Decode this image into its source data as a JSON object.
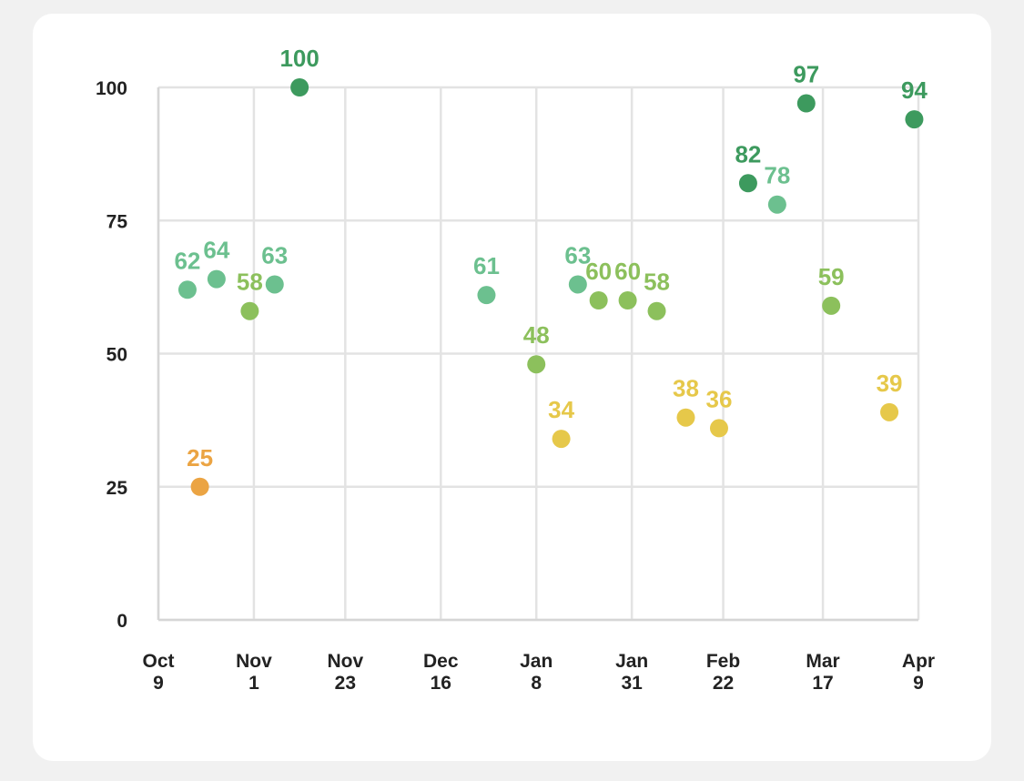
{
  "chart_data": {
    "type": "scatter",
    "title": "",
    "xlabel": "",
    "ylabel": "",
    "x_axis": {
      "type": "date",
      "min": "2023-10-09",
      "max": "2024-04-09",
      "ticks": [
        {
          "date": "2023-10-09",
          "label": [
            "Oct",
            "9"
          ]
        },
        {
          "date": "2023-11-01",
          "label": [
            "Nov",
            "1"
          ]
        },
        {
          "date": "2023-11-23",
          "label": [
            "Nov",
            "23"
          ]
        },
        {
          "date": "2023-12-16",
          "label": [
            "Dec",
            "16"
          ]
        },
        {
          "date": "2024-01-08",
          "label": [
            "Jan",
            "8"
          ]
        },
        {
          "date": "2024-01-31",
          "label": [
            "Jan",
            "31"
          ]
        },
        {
          "date": "2024-02-22",
          "label": [
            "Feb",
            "22"
          ]
        },
        {
          "date": "2024-03-17",
          "label": [
            "Mar",
            "17"
          ]
        },
        {
          "date": "2024-04-09",
          "label": [
            "Apr",
            "9"
          ]
        }
      ]
    },
    "y_axis": {
      "min": 0,
      "max": 100,
      "ticks": [
        0,
        25,
        50,
        75,
        100
      ]
    },
    "grid": true,
    "legend": "none",
    "color_scale": [
      {
        "min": 80,
        "color": "#3d9a5e"
      },
      {
        "min": 61,
        "color": "#6cc08f"
      },
      {
        "min": 45,
        "color": "#8cc05c"
      },
      {
        "min": 30,
        "color": "#e6c84a"
      },
      {
        "min": 0,
        "color": "#eba443"
      }
    ],
    "points": [
      {
        "date": "2023-10-16",
        "value": 62
      },
      {
        "date": "2023-10-19",
        "value": 25
      },
      {
        "date": "2023-10-23",
        "value": 64
      },
      {
        "date": "2023-10-31",
        "value": 58
      },
      {
        "date": "2023-11-06",
        "value": 63
      },
      {
        "date": "2023-11-12",
        "value": 100
      },
      {
        "date": "2023-12-27",
        "value": 61
      },
      {
        "date": "2024-01-08",
        "value": 48
      },
      {
        "date": "2024-01-14",
        "value": 34
      },
      {
        "date": "2024-01-18",
        "value": 63
      },
      {
        "date": "2024-01-23",
        "value": 60
      },
      {
        "date": "2024-01-30",
        "value": 60
      },
      {
        "date": "2024-02-06",
        "value": 58
      },
      {
        "date": "2024-02-13",
        "value": 38
      },
      {
        "date": "2024-02-21",
        "value": 36
      },
      {
        "date": "2024-02-28",
        "value": 82
      },
      {
        "date": "2024-03-06",
        "value": 78
      },
      {
        "date": "2024-03-13",
        "value": 97
      },
      {
        "date": "2024-03-19",
        "value": 59
      },
      {
        "date": "2024-04-02",
        "value": 39
      },
      {
        "date": "2024-04-08",
        "value": 94
      }
    ]
  }
}
